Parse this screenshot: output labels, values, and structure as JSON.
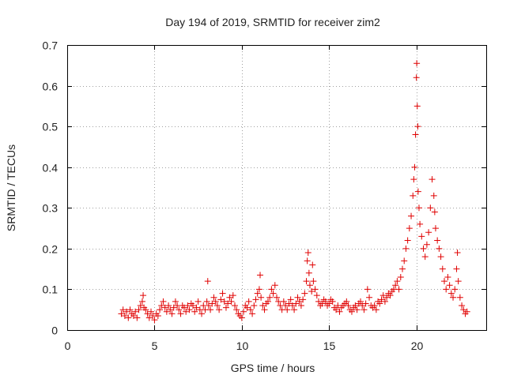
{
  "chart_data": {
    "type": "scatter",
    "title": "Day 194 of 2019, SRMTID for receiver zim2",
    "xlabel": "GPS time / hours",
    "ylabel": "SRMTID / TECUs",
    "xlim": [
      0,
      24
    ],
    "ylim": [
      0,
      0.7
    ],
    "x_ticks": [
      0,
      5,
      10,
      15,
      20
    ],
    "x_tick_labels": [
      "0",
      "5",
      "10",
      "15",
      "20"
    ],
    "y_ticks": [
      0,
      0.1,
      0.2,
      0.3,
      0.4,
      0.5,
      0.6,
      0.7
    ],
    "y_tick_labels": [
      "0",
      "0.1",
      "0.2",
      "0.3",
      "0.4",
      "0.5",
      "0.6",
      "0.7"
    ],
    "grid": true,
    "marker": "+",
    "color": "#e00000",
    "series": [
      {
        "name": "SRMTID",
        "points": [
          [
            3.1,
            0.04
          ],
          [
            3.2,
            0.05
          ],
          [
            3.3,
            0.035
          ],
          [
            3.4,
            0.045
          ],
          [
            3.5,
            0.03
          ],
          [
            3.6,
            0.05
          ],
          [
            3.7,
            0.04
          ],
          [
            3.8,
            0.035
          ],
          [
            3.9,
            0.045
          ],
          [
            4.0,
            0.03
          ],
          [
            4.1,
            0.05
          ],
          [
            4.2,
            0.06
          ],
          [
            4.3,
            0.07
          ],
          [
            4.35,
            0.085
          ],
          [
            4.4,
            0.055
          ],
          [
            4.5,
            0.05
          ],
          [
            4.6,
            0.04
          ],
          [
            4.7,
            0.03
          ],
          [
            4.8,
            0.045
          ],
          [
            4.9,
            0.035
          ],
          [
            5.0,
            0.025
          ],
          [
            5.1,
            0.04
          ],
          [
            5.2,
            0.035
          ],
          [
            5.3,
            0.05
          ],
          [
            5.4,
            0.06
          ],
          [
            5.5,
            0.07
          ],
          [
            5.6,
            0.055
          ],
          [
            5.7,
            0.045
          ],
          [
            5.8,
            0.06
          ],
          [
            5.9,
            0.05
          ],
          [
            6.0,
            0.04
          ],
          [
            6.1,
            0.055
          ],
          [
            6.2,
            0.07
          ],
          [
            6.3,
            0.06
          ],
          [
            6.4,
            0.05
          ],
          [
            6.5,
            0.04
          ],
          [
            6.6,
            0.06
          ],
          [
            6.7,
            0.055
          ],
          [
            6.8,
            0.045
          ],
          [
            6.9,
            0.06
          ],
          [
            7.0,
            0.05
          ],
          [
            7.1,
            0.065
          ],
          [
            7.2,
            0.06
          ],
          [
            7.3,
            0.045
          ],
          [
            7.4,
            0.055
          ],
          [
            7.5,
            0.07
          ],
          [
            7.6,
            0.05
          ],
          [
            7.7,
            0.04
          ],
          [
            7.8,
            0.06
          ],
          [
            7.9,
            0.05
          ],
          [
            8.0,
            0.07
          ],
          [
            8.05,
            0.12
          ],
          [
            8.1,
            0.06
          ],
          [
            8.2,
            0.05
          ],
          [
            8.3,
            0.065
          ],
          [
            8.4,
            0.08
          ],
          [
            8.5,
            0.07
          ],
          [
            8.6,
            0.06
          ],
          [
            8.7,
            0.05
          ],
          [
            8.8,
            0.075
          ],
          [
            8.9,
            0.09
          ],
          [
            9.0,
            0.07
          ],
          [
            9.1,
            0.055
          ],
          [
            9.2,
            0.065
          ],
          [
            9.3,
            0.08
          ],
          [
            9.4,
            0.07
          ],
          [
            9.5,
            0.085
          ],
          [
            9.6,
            0.06
          ],
          [
            9.7,
            0.05
          ],
          [
            9.8,
            0.04
          ],
          [
            9.9,
            0.035
          ],
          [
            10.0,
            0.03
          ],
          [
            10.1,
            0.045
          ],
          [
            10.2,
            0.06
          ],
          [
            10.3,
            0.055
          ],
          [
            10.4,
            0.07
          ],
          [
            10.5,
            0.05
          ],
          [
            10.6,
            0.04
          ],
          [
            10.7,
            0.06
          ],
          [
            10.8,
            0.075
          ],
          [
            10.9,
            0.09
          ],
          [
            11.0,
            0.1
          ],
          [
            11.05,
            0.135
          ],
          [
            11.1,
            0.08
          ],
          [
            11.2,
            0.06
          ],
          [
            11.3,
            0.05
          ],
          [
            11.4,
            0.065
          ],
          [
            11.5,
            0.07
          ],
          [
            11.6,
            0.08
          ],
          [
            11.7,
            0.1
          ],
          [
            11.8,
            0.09
          ],
          [
            11.9,
            0.11
          ],
          [
            12.0,
            0.08
          ],
          [
            12.1,
            0.07
          ],
          [
            12.2,
            0.06
          ],
          [
            12.3,
            0.05
          ],
          [
            12.4,
            0.07
          ],
          [
            12.5,
            0.06
          ],
          [
            12.6,
            0.05
          ],
          [
            12.7,
            0.065
          ],
          [
            12.8,
            0.075
          ],
          [
            12.9,
            0.06
          ],
          [
            13.0,
            0.05
          ],
          [
            13.1,
            0.065
          ],
          [
            13.2,
            0.08
          ],
          [
            13.3,
            0.07
          ],
          [
            13.4,
            0.06
          ],
          [
            13.5,
            0.075
          ],
          [
            13.6,
            0.09
          ],
          [
            13.7,
            0.12
          ],
          [
            13.75,
            0.17
          ],
          [
            13.8,
            0.19
          ],
          [
            13.85,
            0.14
          ],
          [
            13.9,
            0.11
          ],
          [
            14.0,
            0.095
          ],
          [
            14.05,
            0.16
          ],
          [
            14.1,
            0.12
          ],
          [
            14.2,
            0.1
          ],
          [
            14.3,
            0.085
          ],
          [
            14.4,
            0.07
          ],
          [
            14.5,
            0.06
          ],
          [
            14.6,
            0.065
          ],
          [
            14.7,
            0.075
          ],
          [
            14.8,
            0.07
          ],
          [
            14.9,
            0.06
          ],
          [
            15.0,
            0.065
          ],
          [
            15.1,
            0.075
          ],
          [
            15.2,
            0.07
          ],
          [
            15.3,
            0.055
          ],
          [
            15.4,
            0.05
          ],
          [
            15.5,
            0.06
          ],
          [
            15.6,
            0.045
          ],
          [
            15.7,
            0.055
          ],
          [
            15.8,
            0.06
          ],
          [
            15.9,
            0.065
          ],
          [
            16.0,
            0.07
          ],
          [
            16.1,
            0.06
          ],
          [
            16.2,
            0.05
          ],
          [
            16.3,
            0.045
          ],
          [
            16.4,
            0.055
          ],
          [
            16.5,
            0.06
          ],
          [
            16.6,
            0.05
          ],
          [
            16.7,
            0.065
          ],
          [
            16.8,
            0.07
          ],
          [
            16.9,
            0.06
          ],
          [
            17.0,
            0.05
          ],
          [
            17.1,
            0.065
          ],
          [
            17.2,
            0.1
          ],
          [
            17.3,
            0.08
          ],
          [
            17.4,
            0.06
          ],
          [
            17.5,
            0.055
          ],
          [
            17.6,
            0.06
          ],
          [
            17.7,
            0.05
          ],
          [
            17.8,
            0.07
          ],
          [
            17.9,
            0.065
          ],
          [
            18.0,
            0.075
          ],
          [
            18.1,
            0.085
          ],
          [
            18.2,
            0.07
          ],
          [
            18.3,
            0.08
          ],
          [
            18.4,
            0.09
          ],
          [
            18.5,
            0.085
          ],
          [
            18.6,
            0.095
          ],
          [
            18.7,
            0.1
          ],
          [
            18.8,
            0.11
          ],
          [
            18.9,
            0.12
          ],
          [
            19.0,
            0.1
          ],
          [
            19.1,
            0.13
          ],
          [
            19.2,
            0.15
          ],
          [
            19.3,
            0.17
          ],
          [
            19.4,
            0.2
          ],
          [
            19.5,
            0.22
          ],
          [
            19.6,
            0.25
          ],
          [
            19.7,
            0.28
          ],
          [
            19.8,
            0.33
          ],
          [
            19.85,
            0.37
          ],
          [
            19.9,
            0.4
          ],
          [
            19.95,
            0.48
          ],
          [
            20.0,
            0.62
          ],
          [
            20.02,
            0.655
          ],
          [
            20.05,
            0.55
          ],
          [
            20.08,
            0.5
          ],
          [
            20.1,
            0.34
          ],
          [
            20.15,
            0.3
          ],
          [
            20.2,
            0.26
          ],
          [
            20.3,
            0.23
          ],
          [
            20.4,
            0.2
          ],
          [
            20.5,
            0.18
          ],
          [
            20.6,
            0.21
          ],
          [
            20.7,
            0.24
          ],
          [
            20.8,
            0.3
          ],
          [
            20.9,
            0.37
          ],
          [
            21.0,
            0.33
          ],
          [
            21.05,
            0.29
          ],
          [
            21.1,
            0.25
          ],
          [
            21.2,
            0.22
          ],
          [
            21.3,
            0.2
          ],
          [
            21.4,
            0.18
          ],
          [
            21.5,
            0.15
          ],
          [
            21.6,
            0.12
          ],
          [
            21.7,
            0.1
          ],
          [
            21.8,
            0.13
          ],
          [
            21.9,
            0.11
          ],
          [
            22.0,
            0.09
          ],
          [
            22.1,
            0.08
          ],
          [
            22.2,
            0.1
          ],
          [
            22.3,
            0.15
          ],
          [
            22.35,
            0.19
          ],
          [
            22.4,
            0.12
          ],
          [
            22.5,
            0.08
          ],
          [
            22.6,
            0.06
          ],
          [
            22.7,
            0.05
          ],
          [
            22.8,
            0.04
          ],
          [
            22.9,
            0.045
          ]
        ]
      }
    ]
  }
}
